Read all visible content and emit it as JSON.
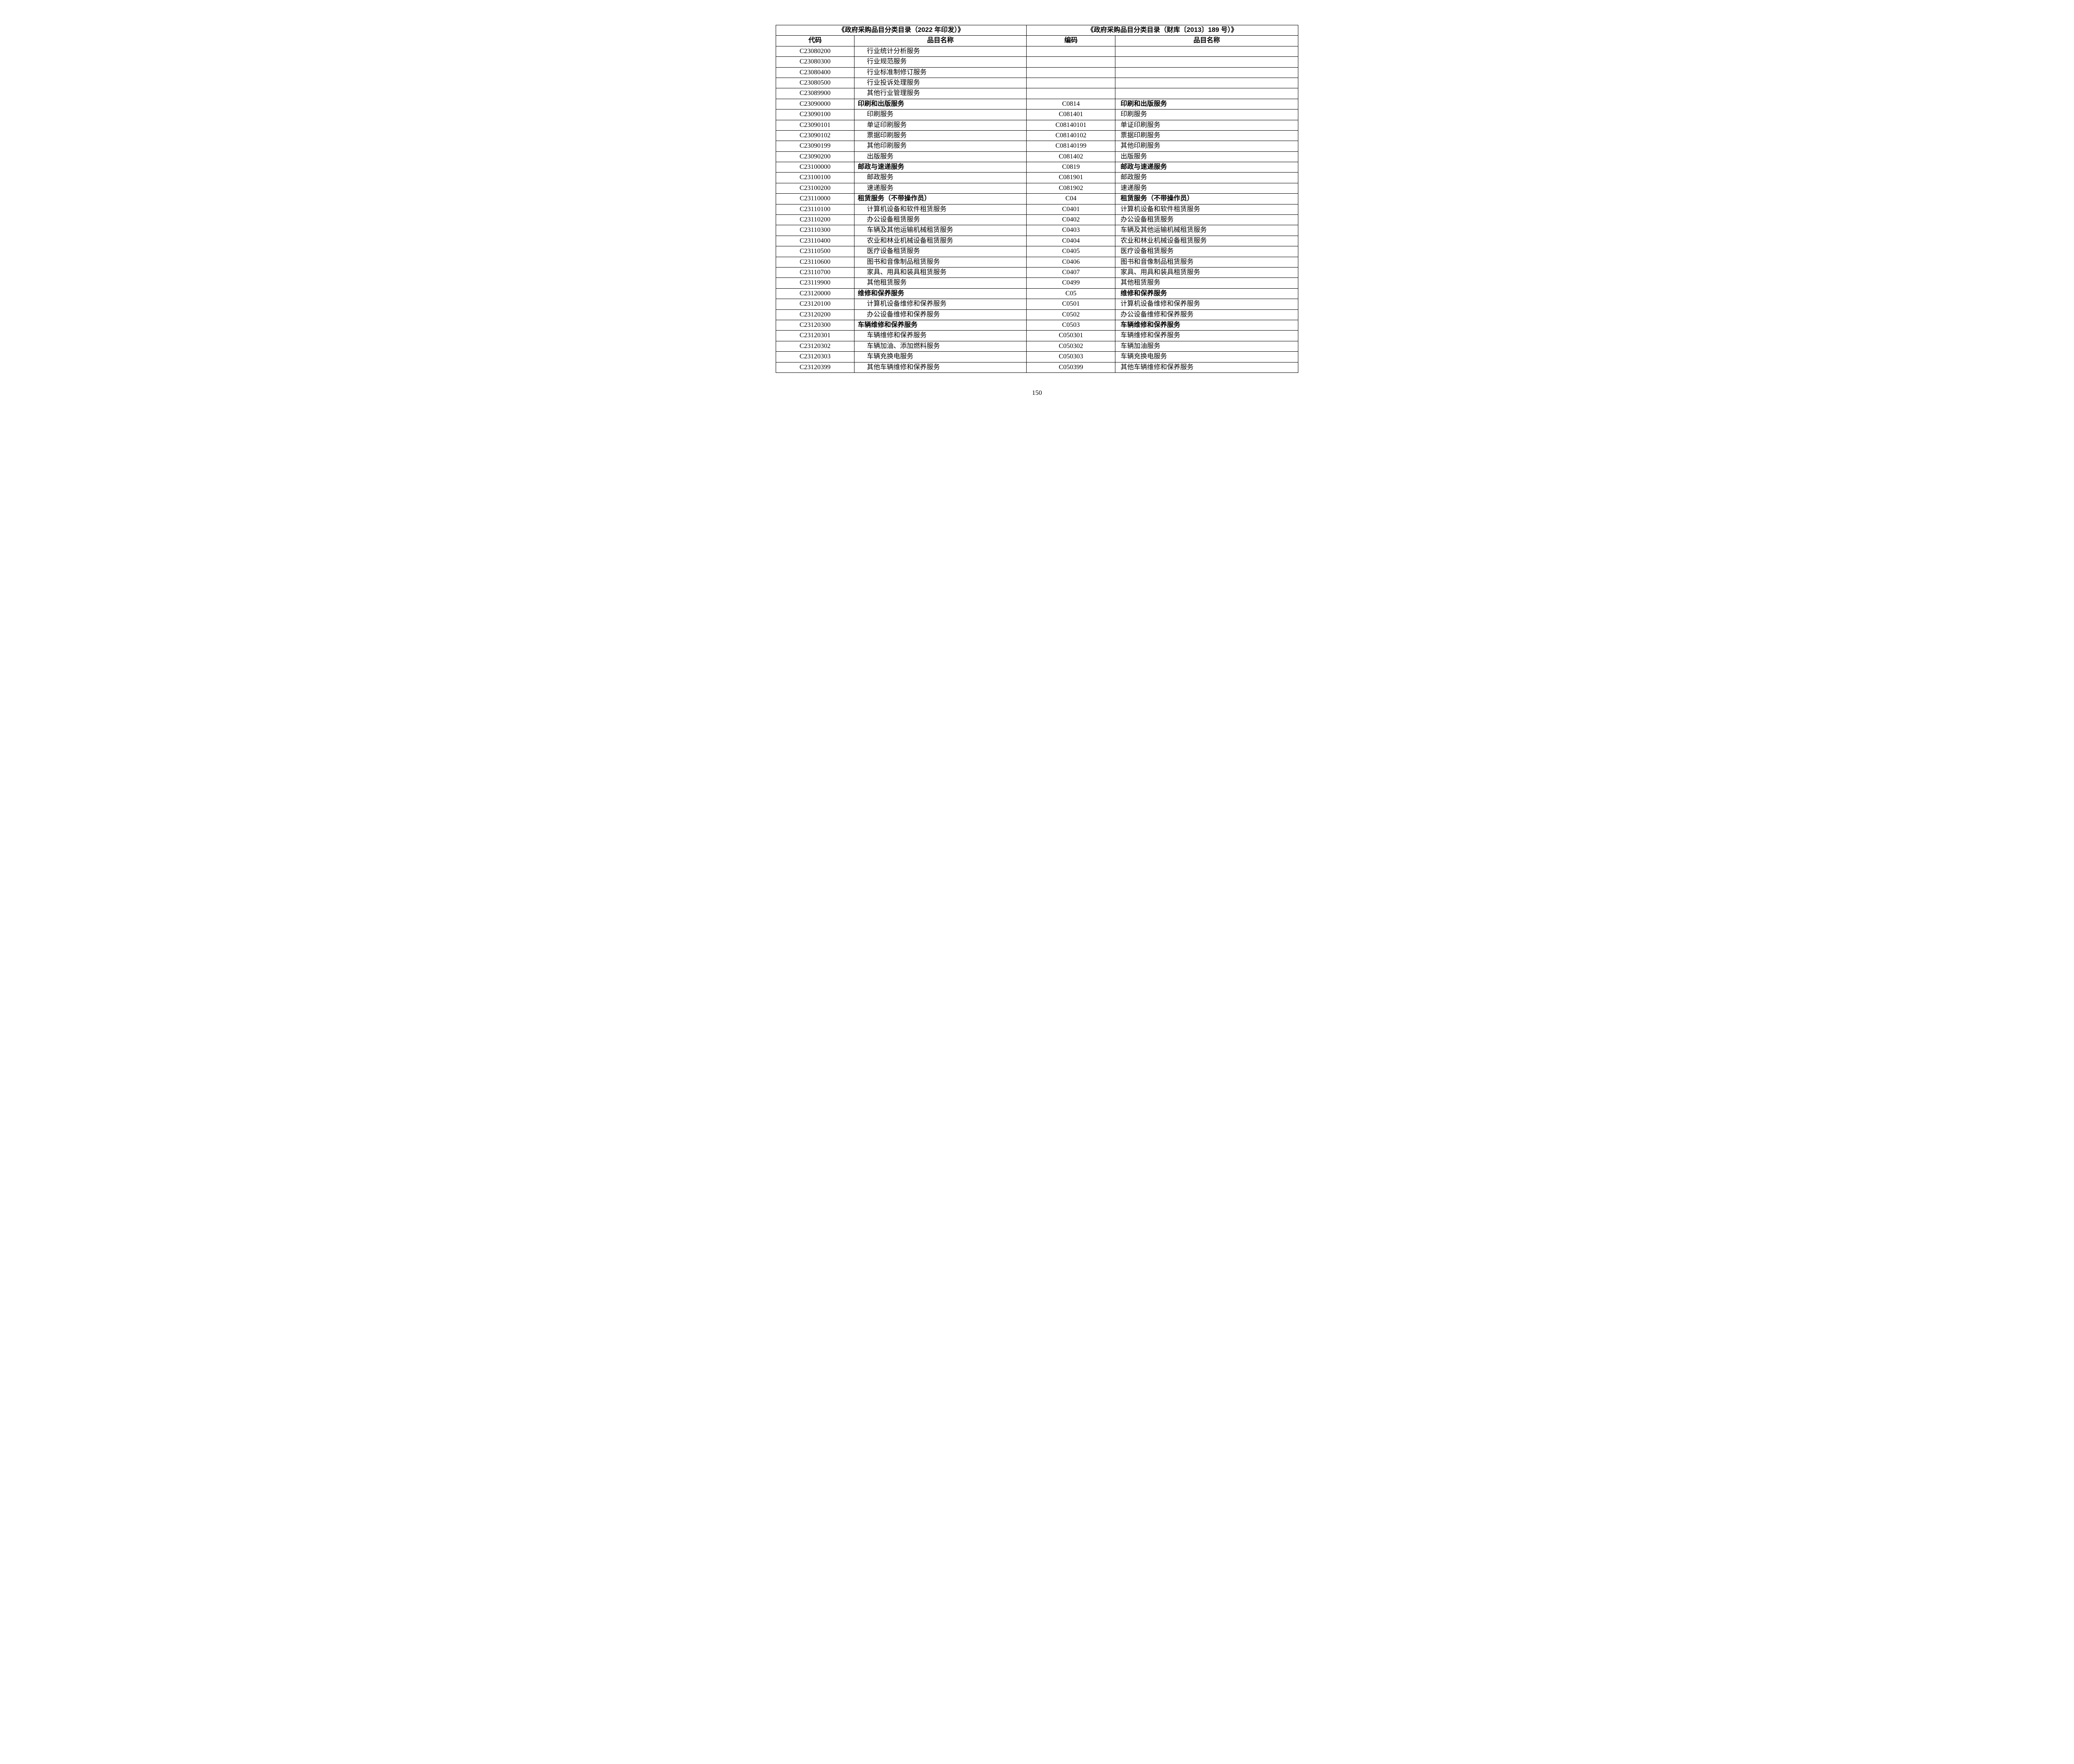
{
  "page_number": "150",
  "table": {
    "header_group_left": "《政府采购品目分类目录（2022 年印发）》",
    "header_group_right": "《政府采购品目分类目录（财库〔2013〕189 号）》",
    "col_code1": "代码",
    "col_name1": "品目名称",
    "col_code2": "编码",
    "col_name2": "品目名称",
    "rows": [
      {
        "code1": "C23080200",
        "name1": "行业统计分析服务",
        "indent1": 1,
        "bold1": false,
        "code2": "",
        "name2": "",
        "bold2": false
      },
      {
        "code1": "C23080300",
        "name1": "行业规范服务",
        "indent1": 1,
        "bold1": false,
        "code2": "",
        "name2": "",
        "bold2": false
      },
      {
        "code1": "C23080400",
        "name1": "行业标准制修订服务",
        "indent1": 1,
        "bold1": false,
        "code2": "",
        "name2": "",
        "bold2": false
      },
      {
        "code1": "C23080500",
        "name1": "行业投诉处理服务",
        "indent1": 1,
        "bold1": false,
        "code2": "",
        "name2": "",
        "bold2": false
      },
      {
        "code1": "C23089900",
        "name1": "其他行业管理服务",
        "indent1": 1,
        "bold1": false,
        "code2": "",
        "name2": "",
        "bold2": false
      },
      {
        "code1": "C23090000",
        "name1": "印刷和出版服务",
        "indent1": 0,
        "bold1": true,
        "code2": "C0814",
        "name2": "印刷和出版服务",
        "bold2": true
      },
      {
        "code1": "C23090100",
        "name1": "印刷服务",
        "indent1": 1,
        "bold1": false,
        "code2": "C081401",
        "name2": "印刷服务",
        "bold2": false
      },
      {
        "code1": "C23090101",
        "name1": "单证印刷服务",
        "indent1": 2,
        "bold1": false,
        "code2": "C08140101",
        "name2": "单证印刷服务",
        "bold2": false
      },
      {
        "code1": "C23090102",
        "name1": "票据印刷服务",
        "indent1": 2,
        "bold1": false,
        "code2": "C08140102",
        "name2": "票据印刷服务",
        "bold2": false
      },
      {
        "code1": "C23090199",
        "name1": "其他印刷服务",
        "indent1": 2,
        "bold1": false,
        "code2": "C08140199",
        "name2": "其他印刷服务",
        "bold2": false
      },
      {
        "code1": "C23090200",
        "name1": "出版服务",
        "indent1": 1,
        "bold1": false,
        "code2": "C081402",
        "name2": "出版服务",
        "bold2": false
      },
      {
        "code1": "C23100000",
        "name1": "邮政与速递服务",
        "indent1": 0,
        "bold1": true,
        "code2": "C0819",
        "name2": "邮政与速递服务",
        "bold2": true
      },
      {
        "code1": "C23100100",
        "name1": "邮政服务",
        "indent1": 1,
        "bold1": false,
        "code2": "C081901",
        "name2": "邮政服务",
        "bold2": false
      },
      {
        "code1": "C23100200",
        "name1": "速递服务",
        "indent1": 1,
        "bold1": false,
        "code2": "C081902",
        "name2": "速递服务",
        "bold2": false
      },
      {
        "code1": "C23110000",
        "name1": "租赁服务（不带操作员）",
        "indent1": 0,
        "bold1": true,
        "code2": "C04",
        "name2": "租赁服务（不带操作员）",
        "bold2": true
      },
      {
        "code1": "C23110100",
        "name1": "计算机设备和软件租赁服务",
        "indent1": 1,
        "bold1": false,
        "code2": "C0401",
        "name2": "计算机设备和软件租赁服务",
        "bold2": false
      },
      {
        "code1": "C23110200",
        "name1": "办公设备租赁服务",
        "indent1": 1,
        "bold1": false,
        "code2": "C0402",
        "name2": "办公设备租赁服务",
        "bold2": false
      },
      {
        "code1": "C23110300",
        "name1": "车辆及其他运输机械租赁服务",
        "indent1": 1,
        "bold1": false,
        "code2": "C0403",
        "name2": "车辆及其他运输机械租赁服务",
        "bold2": false
      },
      {
        "code1": "C23110400",
        "name1": "农业和林业机械设备租赁服务",
        "indent1": 1,
        "bold1": false,
        "code2": "C0404",
        "name2": "农业和林业机械设备租赁服务",
        "bold2": false
      },
      {
        "code1": "C23110500",
        "name1": "医疗设备租赁服务",
        "indent1": 1,
        "bold1": false,
        "code2": "C0405",
        "name2": "医疗设备租赁服务",
        "bold2": false
      },
      {
        "code1": "C23110600",
        "name1": "图书和音像制品租赁服务",
        "indent1": 1,
        "bold1": false,
        "code2": "C0406",
        "name2": "图书和音像制品租赁服务",
        "bold2": false
      },
      {
        "code1": "C23110700",
        "name1": "家具、用具和装具租赁服务",
        "indent1": 1,
        "bold1": false,
        "code2": "C0407",
        "name2": "家具、用具和装具租赁服务",
        "bold2": false
      },
      {
        "code1": "C23119900",
        "name1": "其他租赁服务",
        "indent1": 1,
        "bold1": false,
        "code2": "C0499",
        "name2": "其他租赁服务",
        "bold2": false
      },
      {
        "code1": "C23120000",
        "name1": "维修和保养服务",
        "indent1": 0,
        "bold1": true,
        "code2": "C05",
        "name2": "维修和保养服务",
        "bold2": true
      },
      {
        "code1": "C23120100",
        "name1": "计算机设备维修和保养服务",
        "indent1": 1,
        "bold1": false,
        "code2": "C0501",
        "name2": "计算机设备维修和保养服务",
        "bold2": false
      },
      {
        "code1": "C23120200",
        "name1": "办公设备维修和保养服务",
        "indent1": 1,
        "bold1": false,
        "code2": "C0502",
        "name2": "办公设备维修和保养服务",
        "bold2": false
      },
      {
        "code1": "C23120300",
        "name1": "车辆维修和保养服务",
        "indent1": 0,
        "bold1": true,
        "code2": "C0503",
        "name2": "车辆维修和保养服务",
        "bold2": true
      },
      {
        "code1": "C23120301",
        "name1": "车辆维修和保养服务",
        "indent1": 2,
        "bold1": false,
        "code2": "C050301",
        "name2": "车辆维修和保养服务",
        "bold2": false
      },
      {
        "code1": "C23120302",
        "name1": "车辆加油、添加燃料服务",
        "indent1": 2,
        "bold1": false,
        "code2": "C050302",
        "name2": "车辆加油服务",
        "bold2": false
      },
      {
        "code1": "C23120303",
        "name1": "车辆充换电服务",
        "indent1": 2,
        "bold1": false,
        "code2": "C050303",
        "name2": "车辆充换电服务",
        "bold2": false
      },
      {
        "code1": "C23120399",
        "name1": "其他车辆维修和保养服务",
        "indent1": 2,
        "bold1": false,
        "code2": "C050399",
        "name2": "其他车辆维修和保养服务",
        "bold2": false
      }
    ]
  },
  "style": {
    "font_family_body": "SimSun",
    "font_family_header": "SimHei",
    "font_size_cell": 16,
    "border_color": "#000000",
    "background": "#ffffff",
    "text_color": "#000000",
    "col_widths_pct": [
      15,
      33,
      17,
      35
    ]
  }
}
